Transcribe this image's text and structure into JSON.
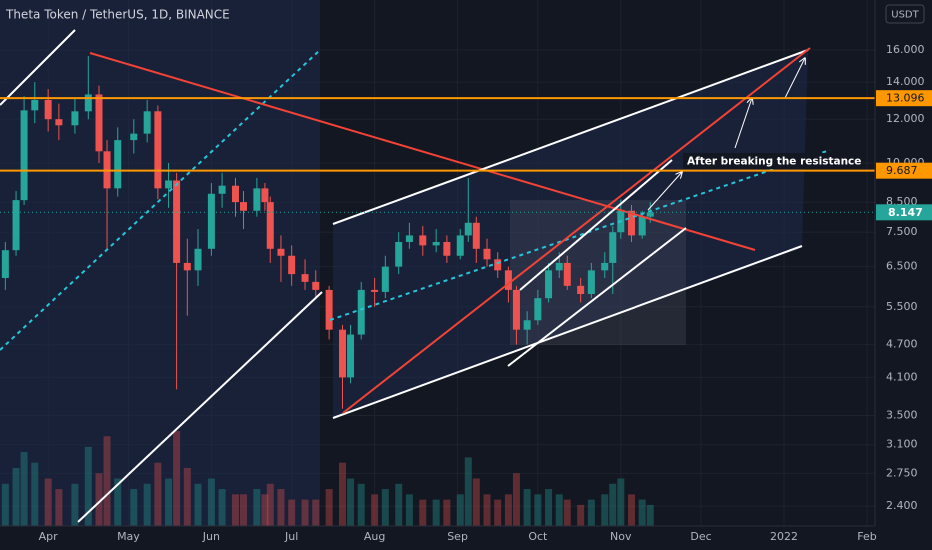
{
  "chart_data": {
    "type": "candlestick",
    "title": "Theta Token / TetherUS, 1D, BINANCE",
    "currency": "USDT",
    "annotation": "After breaking the resistance",
    "x": [
      "2021-03-16",
      "2021-03-20",
      "2021-03-23",
      "2021-03-27",
      "2021-04-01",
      "2021-04-05",
      "2021-04-11",
      "2021-04-16",
      "2021-04-20",
      "2021-04-23",
      "2021-04-27",
      "2021-05-03",
      "2021-05-08",
      "2021-05-12",
      "2021-05-16",
      "2021-05-19",
      "2021-05-23",
      "2021-05-27",
      "2021-06-01",
      "2021-06-05",
      "2021-06-10",
      "2021-06-13",
      "2021-06-18",
      "2021-06-21",
      "2021-06-23",
      "2021-06-27",
      "2021-07-01",
      "2021-07-06",
      "2021-07-10",
      "2021-07-15",
      "2021-07-20",
      "2021-07-23",
      "2021-07-27",
      "2021-08-01",
      "2021-08-05",
      "2021-08-10",
      "2021-08-14",
      "2021-08-19",
      "2021-08-24",
      "2021-08-28",
      "2021-09-02",
      "2021-09-05",
      "2021-09-08",
      "2021-09-12",
      "2021-09-16",
      "2021-09-20",
      "2021-09-23",
      "2021-09-27",
      "2021-10-01",
      "2021-10-05",
      "2021-10-09",
      "2021-10-12",
      "2021-10-17",
      "2021-10-21",
      "2021-10-26",
      "2021-10-29",
      "2021-11-01",
      "2021-11-05",
      "2021-11-09",
      "2021-11-12"
    ],
    "open": [
      6.2,
      6.96,
      8.57,
      12.45,
      13.0,
      12.0,
      11.7,
      12.4,
      13.3,
      10.5,
      9.0,
      11.0,
      11.3,
      12.4,
      9.0,
      9.3,
      6.6,
      6.4,
      7.0,
      8.8,
      9.1,
      8.5,
      8.2,
      9.0,
      8.5,
      7.0,
      6.8,
      6.3,
      6.1,
      5.9,
      5.0,
      4.1,
      4.9,
      5.9,
      5.85,
      6.5,
      7.2,
      7.4,
      7.1,
      7.2,
      6.8,
      7.4,
      7.8,
      7.0,
      6.7,
      6.4,
      5.9,
      5.0,
      5.2,
      5.7,
      6.4,
      6.6,
      6.0,
      5.8,
      6.4,
      6.6,
      7.5,
      8.2,
      7.4,
      8.0
    ],
    "high": [
      7.2,
      8.9,
      13.2,
      14.0,
      13.6,
      12.8,
      13.1,
      15.6,
      13.8,
      11.0,
      11.6,
      12.0,
      13.0,
      12.7,
      10.0,
      9.6,
      7.3,
      7.6,
      9.2,
      9.6,
      9.4,
      8.9,
      9.4,
      9.2,
      8.7,
      7.4,
      7.1,
      6.7,
      6.4,
      6.0,
      5.1,
      5.1,
      6.1,
      6.2,
      6.8,
      7.5,
      7.8,
      7.7,
      7.6,
      7.4,
      7.6,
      9.4,
      8.0,
      7.3,
      6.9,
      6.5,
      6.0,
      5.4,
      5.9,
      6.6,
      6.9,
      6.8,
      6.2,
      6.6,
      6.9,
      7.7,
      8.6,
      8.4,
      8.2,
      8.5
    ],
    "low": [
      5.9,
      6.8,
      8.4,
      11.8,
      11.4,
      11.0,
      11.3,
      12.0,
      10.0,
      7.0,
      8.7,
      10.4,
      10.9,
      8.6,
      8.3,
      3.9,
      5.3,
      6.0,
      6.8,
      8.3,
      8.0,
      7.6,
      8.0,
      8.2,
      6.6,
      6.1,
      6.0,
      5.9,
      5.7,
      4.8,
      3.6,
      4.0,
      4.8,
      5.5,
      5.7,
      6.3,
      7.0,
      6.8,
      6.9,
      6.6,
      6.7,
      7.2,
      6.6,
      6.5,
      6.2,
      5.6,
      4.7,
      4.7,
      5.1,
      5.6,
      6.2,
      5.9,
      5.6,
      5.7,
      6.2,
      5.8,
      7.3,
      7.2,
      7.3,
      7.8
    ],
    "close": [
      6.96,
      8.57,
      12.45,
      13.0,
      12.0,
      11.7,
      12.4,
      13.3,
      10.5,
      9.0,
      11.0,
      11.3,
      12.4,
      9.0,
      9.3,
      6.6,
      6.4,
      7.0,
      8.8,
      9.1,
      8.5,
      8.2,
      9.0,
      8.5,
      7.0,
      6.8,
      6.3,
      6.1,
      5.9,
      5.0,
      4.1,
      4.9,
      5.9,
      5.85,
      6.5,
      7.2,
      7.4,
      7.1,
      7.2,
      6.8,
      7.4,
      7.8,
      7.0,
      6.7,
      6.4,
      5.9,
      5.0,
      5.2,
      5.7,
      6.4,
      6.6,
      6.0,
      5.8,
      6.4,
      6.6,
      7.5,
      8.2,
      7.4,
      8.0,
      8.147
    ],
    "volume": [
      40,
      55,
      70,
      60,
      45,
      35,
      40,
      75,
      50,
      85,
      45,
      35,
      40,
      60,
      45,
      90,
      55,
      40,
      45,
      35,
      30,
      30,
      35,
      30,
      40,
      35,
      25,
      25,
      25,
      35,
      60,
      45,
      40,
      30,
      35,
      40,
      30,
      25,
      25,
      25,
      30,
      65,
      45,
      30,
      25,
      30,
      50,
      35,
      30,
      35,
      30,
      25,
      20,
      25,
      30,
      40,
      45,
      30,
      25,
      20
    ],
    "up_color": "#26a69a",
    "down_color": "#ef5350",
    "levels": [
      13.096,
      9.687
    ],
    "level_color": "#ff9800",
    "last_price": 8.147,
    "log_scale": true,
    "ylim": [
      2.21,
      19.7
    ],
    "yticks": [
      {
        "value": 16,
        "label": "16.000"
      },
      {
        "value": 14,
        "label": "14.000"
      },
      {
        "value": 12,
        "label": "12.000"
      },
      {
        "value": 10,
        "label": "10.000"
      },
      {
        "value": 8.5,
        "label": "8.500"
      },
      {
        "value": 7.5,
        "label": "7.500"
      },
      {
        "value": 6.5,
        "label": "6.500"
      },
      {
        "value": 5.5,
        "label": "5.500"
      },
      {
        "value": 4.7,
        "label": "4.700"
      },
      {
        "value": 4.1,
        "label": "4.100"
      },
      {
        "value": 3.5,
        "label": "3.500"
      },
      {
        "value": 3.1,
        "label": "3.100"
      },
      {
        "value": 2.75,
        "label": "2.750"
      },
      {
        "value": 2.4,
        "label": "2.400"
      }
    ],
    "xlim": [
      "2021-03-14",
      "2022-02-04"
    ],
    "xticks": [
      {
        "value": "2021-04-01",
        "label": "Apr"
      },
      {
        "value": "2021-05-01",
        "label": "May"
      },
      {
        "value": "2021-06-01",
        "label": "Jun"
      },
      {
        "value": "2021-07-01",
        "label": "Jul"
      },
      {
        "value": "2021-08-01",
        "label": "Aug"
      },
      {
        "value": "2021-09-01",
        "label": "Sep"
      },
      {
        "value": "2021-10-01",
        "label": "Oct"
      },
      {
        "value": "2021-11-01",
        "label": "Nov"
      },
      {
        "value": "2021-12-01",
        "label": "Dec"
      },
      {
        "value": "2022-01-01",
        "label": "2022"
      },
      {
        "value": "2022-02-01",
        "label": "Feb"
      }
    ],
    "grid": true
  }
}
